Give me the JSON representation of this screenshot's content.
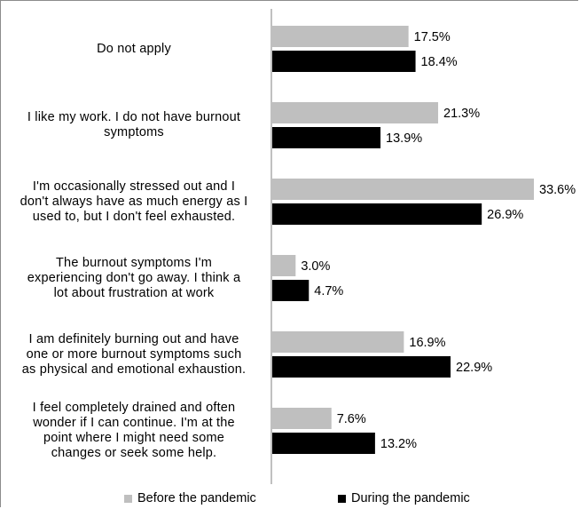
{
  "chart_data": {
    "type": "bar",
    "orientation": "horizontal",
    "categories": [
      "Do not apply",
      "I like my work. I do not have burnout symptoms",
      "I'm occasionally stressed out and I don't always have as much energy as I used to, but I don't feel exhausted.",
      "The burnout symptoms I'm experiencing don't go away. I think a lot about frustration at work",
      "I am definitely burning out and have one or more burnout symptoms such as physical and emotional exhaustion.",
      "I feel completely drained and often wonder if I can continue. I'm at the point where I might need some changes or seek some help."
    ],
    "category_lines": [
      [
        "Do not apply"
      ],
      [
        "I like my work. I do not have burnout",
        "symptoms"
      ],
      [
        "I'm occasionally stressed out and I",
        "don't always have as much energy as I",
        "used to, but I don't feel exhausted."
      ],
      [
        "The burnout symptoms I'm",
        "experiencing don't go away. I think a",
        "lot about frustration at work"
      ],
      [
        "I am definitely burning out and have",
        "one or more burnout symptoms such",
        "as physical and emotional exhaustion."
      ],
      [
        "I feel completely drained and often",
        "wonder if I can continue. I'm at the",
        "point where I might need some",
        "changes or seek some help."
      ]
    ],
    "series": [
      {
        "name": "Before the pandemic",
        "color": "#bfbfbf",
        "values": [
          17.5,
          21.3,
          33.6,
          3.0,
          16.9,
          7.6
        ],
        "labels": [
          "17.5%",
          "21.3%",
          "33.6%",
          "3.0%",
          "16.9%",
          "7.6%"
        ]
      },
      {
        "name": "During the pandemic",
        "color": "#000000",
        "values": [
          18.4,
          13.9,
          26.9,
          4.7,
          22.9,
          13.2
        ],
        "labels": [
          "18.4%",
          "13.9%",
          "26.9%",
          "4.7%",
          "22.9%",
          "13.2%"
        ]
      }
    ],
    "xlim": [
      0,
      37
    ],
    "grid": false,
    "legend_position": "bottom"
  }
}
